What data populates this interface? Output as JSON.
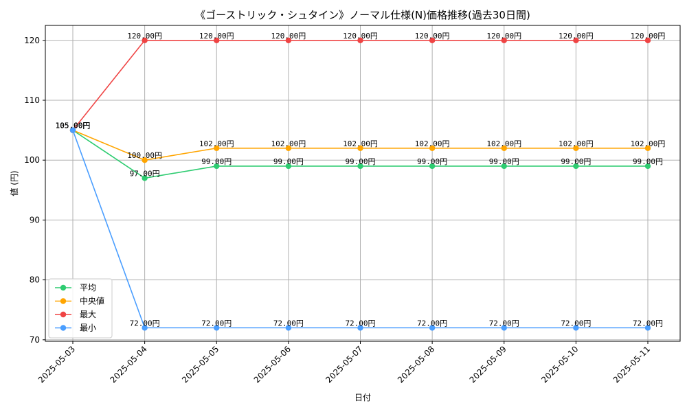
{
  "chart_data": {
    "type": "line",
    "title": "《ゴーストリック・シュタイン》ノーマル仕様(N)価格推移(過去30日間)",
    "xlabel": "日付",
    "ylabel": "値 (円)",
    "categories": [
      "2025-05-03",
      "2025-05-04",
      "2025-05-05",
      "2025-05-06",
      "2025-05-07",
      "2025-05-08",
      "2025-05-09",
      "2025-05-10",
      "2025-05-11"
    ],
    "ylim": [
      69.75,
      122.5
    ],
    "yticks": [
      70,
      80,
      90,
      100,
      110,
      120
    ],
    "grid": true,
    "legend_position": "lower-left",
    "label_suffix": "円",
    "series": [
      {
        "name": "平均",
        "color": "#2ecc71",
        "values": [
          105,
          97,
          99,
          99,
          99,
          99,
          99,
          99,
          99
        ]
      },
      {
        "name": "中央値",
        "color": "#ffa500",
        "values": [
          105,
          100,
          102,
          102,
          102,
          102,
          102,
          102,
          102
        ]
      },
      {
        "name": "最大",
        "color": "#ef4444",
        "values": [
          105,
          120,
          120,
          120,
          120,
          120,
          120,
          120,
          120
        ]
      },
      {
        "name": "最小",
        "color": "#4a9eff",
        "values": [
          105,
          72,
          72,
          72,
          72,
          72,
          72,
          72,
          72
        ]
      }
    ]
  }
}
